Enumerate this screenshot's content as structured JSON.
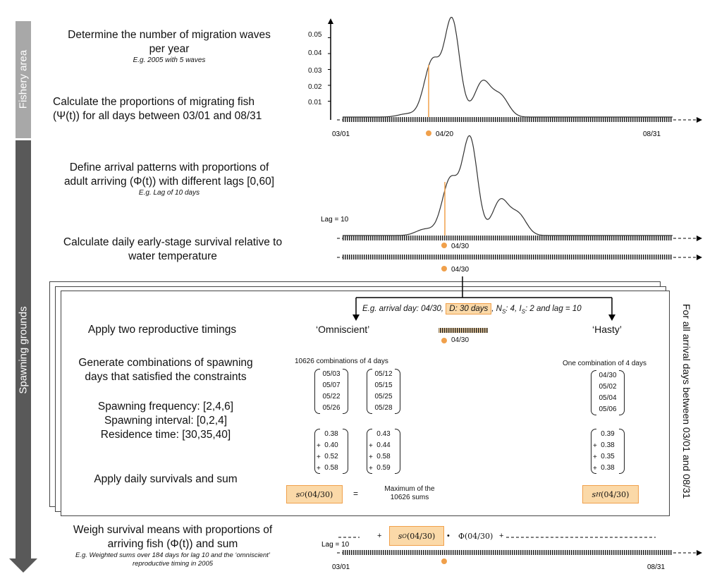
{
  "sidebar": {
    "fishery_area": "Fishery area",
    "spawning_grounds": "Spawning grounds"
  },
  "steps": {
    "s1": "Determine the number of migration waves per year",
    "s1_eg": "E.g. 2005 with 5 waves",
    "s2": "Calculate the proportions of migrating fish (Ψ(t)) for all days between 03/01 and 08/31",
    "s3": "Define arrival patterns with proportions of adult arriving (Φ(t)) with different lags [0,60]",
    "s3_eg": "E.g. Lag of 10 days",
    "s4": "Calculate daily early-stage survival relative to water temperature",
    "s5": "Apply two reproductive timings",
    "s6": "Generate combinations of spawning days that satisfied the constraints",
    "s7a": "Spawning frequency: [2,4,6]",
    "s7b": "Spawning interval: [0,2,4]",
    "s7c": "Residence time: [30,35,40]",
    "s8": "Apply daily survivals and sum",
    "s9": "Weigh survival means with proportions of arriving fish (Φ(t)) and sum",
    "s9_eg": "E.g. Weighted sums over 184 days for lag 10 and the ‘omniscient’ reproductive timing  in 2005"
  },
  "chart_data": [
    {
      "type": "line",
      "title": "",
      "xlabel": "",
      "ylabel": "",
      "x_ticks": [
        "03/01",
        "04/20",
        "08/31"
      ],
      "y_ticks": [
        "0.01",
        "0.02",
        "0.03",
        "0.04",
        "0.05"
      ],
      "ylim": [
        0,
        0.06
      ],
      "highlight": "04/20",
      "series": [
        {
          "peaks": [
            {
              "x": 36,
              "y": 0.002
            },
            {
              "x": 50,
              "y": 0.035
            },
            {
              "x": 61,
              "y": 0.061
            },
            {
              "x": 78,
              "y": 0.022
            },
            {
              "x": 88,
              "y": 0.013
            }
          ]
        }
      ]
    },
    {
      "type": "line",
      "title": "",
      "annotation": "Lag = 10",
      "highlight": "04/30",
      "series": [
        {
          "peaks": [
            {
              "x": 46,
              "y": 0.004
            },
            {
              "x": 60,
              "y": 0.035
            },
            {
              "x": 71,
              "y": 0.061
            },
            {
              "x": 88,
              "y": 0.022
            },
            {
              "x": 98,
              "y": 0.013
            }
          ]
        }
      ]
    }
  ],
  "charts": {
    "tick_0301": "03/01",
    "tick_0420": "04/20",
    "tick_0831": "08/31",
    "y_labels": [
      "0.05",
      "0.04",
      "0.03",
      "0.02",
      "0.01"
    ],
    "lag_label": "Lag = 10",
    "date_0430_a": "04/30",
    "date_0430_b": "04/30"
  },
  "box": {
    "example_prefix": "E.g. arrival day: 04/30,",
    "example_d": "D: 30 days",
    "example_ns": ", N",
    "example_ns_sub": "S",
    "example_ns_val": ": 4, I",
    "example_is_sub": "S",
    "example_rest": ": 2 and lag = 10",
    "omniscient": "‘Omniscient’",
    "hasty": "‘Hasty’",
    "date_center": "04/30",
    "combo_left": "10626 combinations of 4 days",
    "combo_right": "One combination of 4 days",
    "mat1": [
      "05/03",
      "05/07",
      "05/22",
      "05/26"
    ],
    "mat2": [
      "05/12",
      "05/15",
      "05/25",
      "05/28"
    ],
    "mat3": [
      "04/30",
      "05/02",
      "05/04",
      "05/06"
    ],
    "surv1": [
      "0.38",
      "0.40",
      "0.52",
      "0.58"
    ],
    "surv2": [
      "0.43",
      "0.44",
      "0.58",
      "0.59"
    ],
    "surv3": [
      "0.39",
      "0.38",
      "0.35",
      "0.38"
    ],
    "so_label": "s",
    "so_sub": "O",
    "so_arg": "(04/30)",
    "equals": "=",
    "maximum": "Maximum of  the",
    "maximum2": "10626 sums",
    "sh_label": "s",
    "sh_sub": "H",
    "sh_arg": "(04/30)",
    "right_side": "For all arrival days between 03/01 and 08/31"
  },
  "bottom": {
    "lag_label": "Lag = 10",
    "plus1": "+",
    "so_label": "s",
    "so_sub": "O",
    "so_arg": "(04/30)",
    "dot_op": "•",
    "phi": "Φ(04/30)",
    "plus2": "+",
    "tick_0301": "03/01",
    "tick_0831": "08/31"
  },
  "colors": {
    "orange": "#f0a04b",
    "highlight_fill": "#fbd9a8",
    "sidebar_light": "#a8a8a8",
    "sidebar_dark": "#595959"
  }
}
